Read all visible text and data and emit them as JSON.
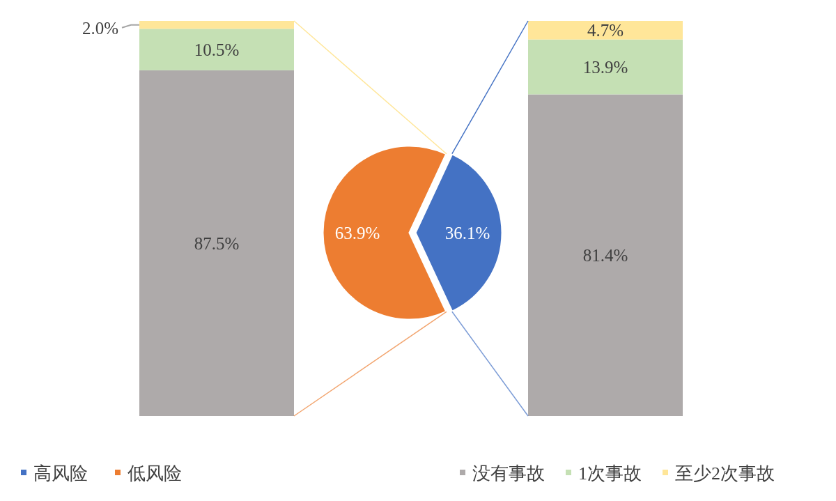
{
  "chart_data": [
    {
      "type": "bar",
      "stacked": true,
      "categories": [
        null
      ],
      "series": [
        {
          "color": "#aeaaaa",
          "values": [
            87.5
          ],
          "value_labels": [
            "87.5%"
          ]
        },
        {
          "color": "#c5e0b4",
          "values": [
            10.5
          ],
          "value_labels": [
            "10.5%"
          ]
        },
        {
          "color": "#ffe699",
          "values": [
            2.0
          ],
          "value_labels": [
            "2.0%"
          ]
        }
      ]
    },
    {
      "type": "pie",
      "categories": [
        "高风险",
        "低风险"
      ],
      "values": [
        36.1,
        63.9
      ],
      "colors": [
        "#4472c4",
        "#ed7d31"
      ],
      "value_labels": [
        "36.1%",
        "63.9%"
      ],
      "legend": "bottom left"
    },
    {
      "type": "bar",
      "stacked": true,
      "categories": [
        null
      ],
      "legend": "bottom right",
      "series": [
        {
          "name": "没有事故",
          "color": "#aeaaaa",
          "values": [
            81.4
          ],
          "value_labels": [
            "81.4%"
          ]
        },
        {
          "name": "1次事故",
          "color": "#c5e0b4",
          "values": [
            13.9
          ],
          "value_labels": [
            "13.9%"
          ]
        },
        {
          "name": "至少2次事故",
          "color": "#ffe699",
          "values": [
            4.7
          ],
          "value_labels": [
            "4.7%"
          ]
        }
      ]
    }
  ]
}
